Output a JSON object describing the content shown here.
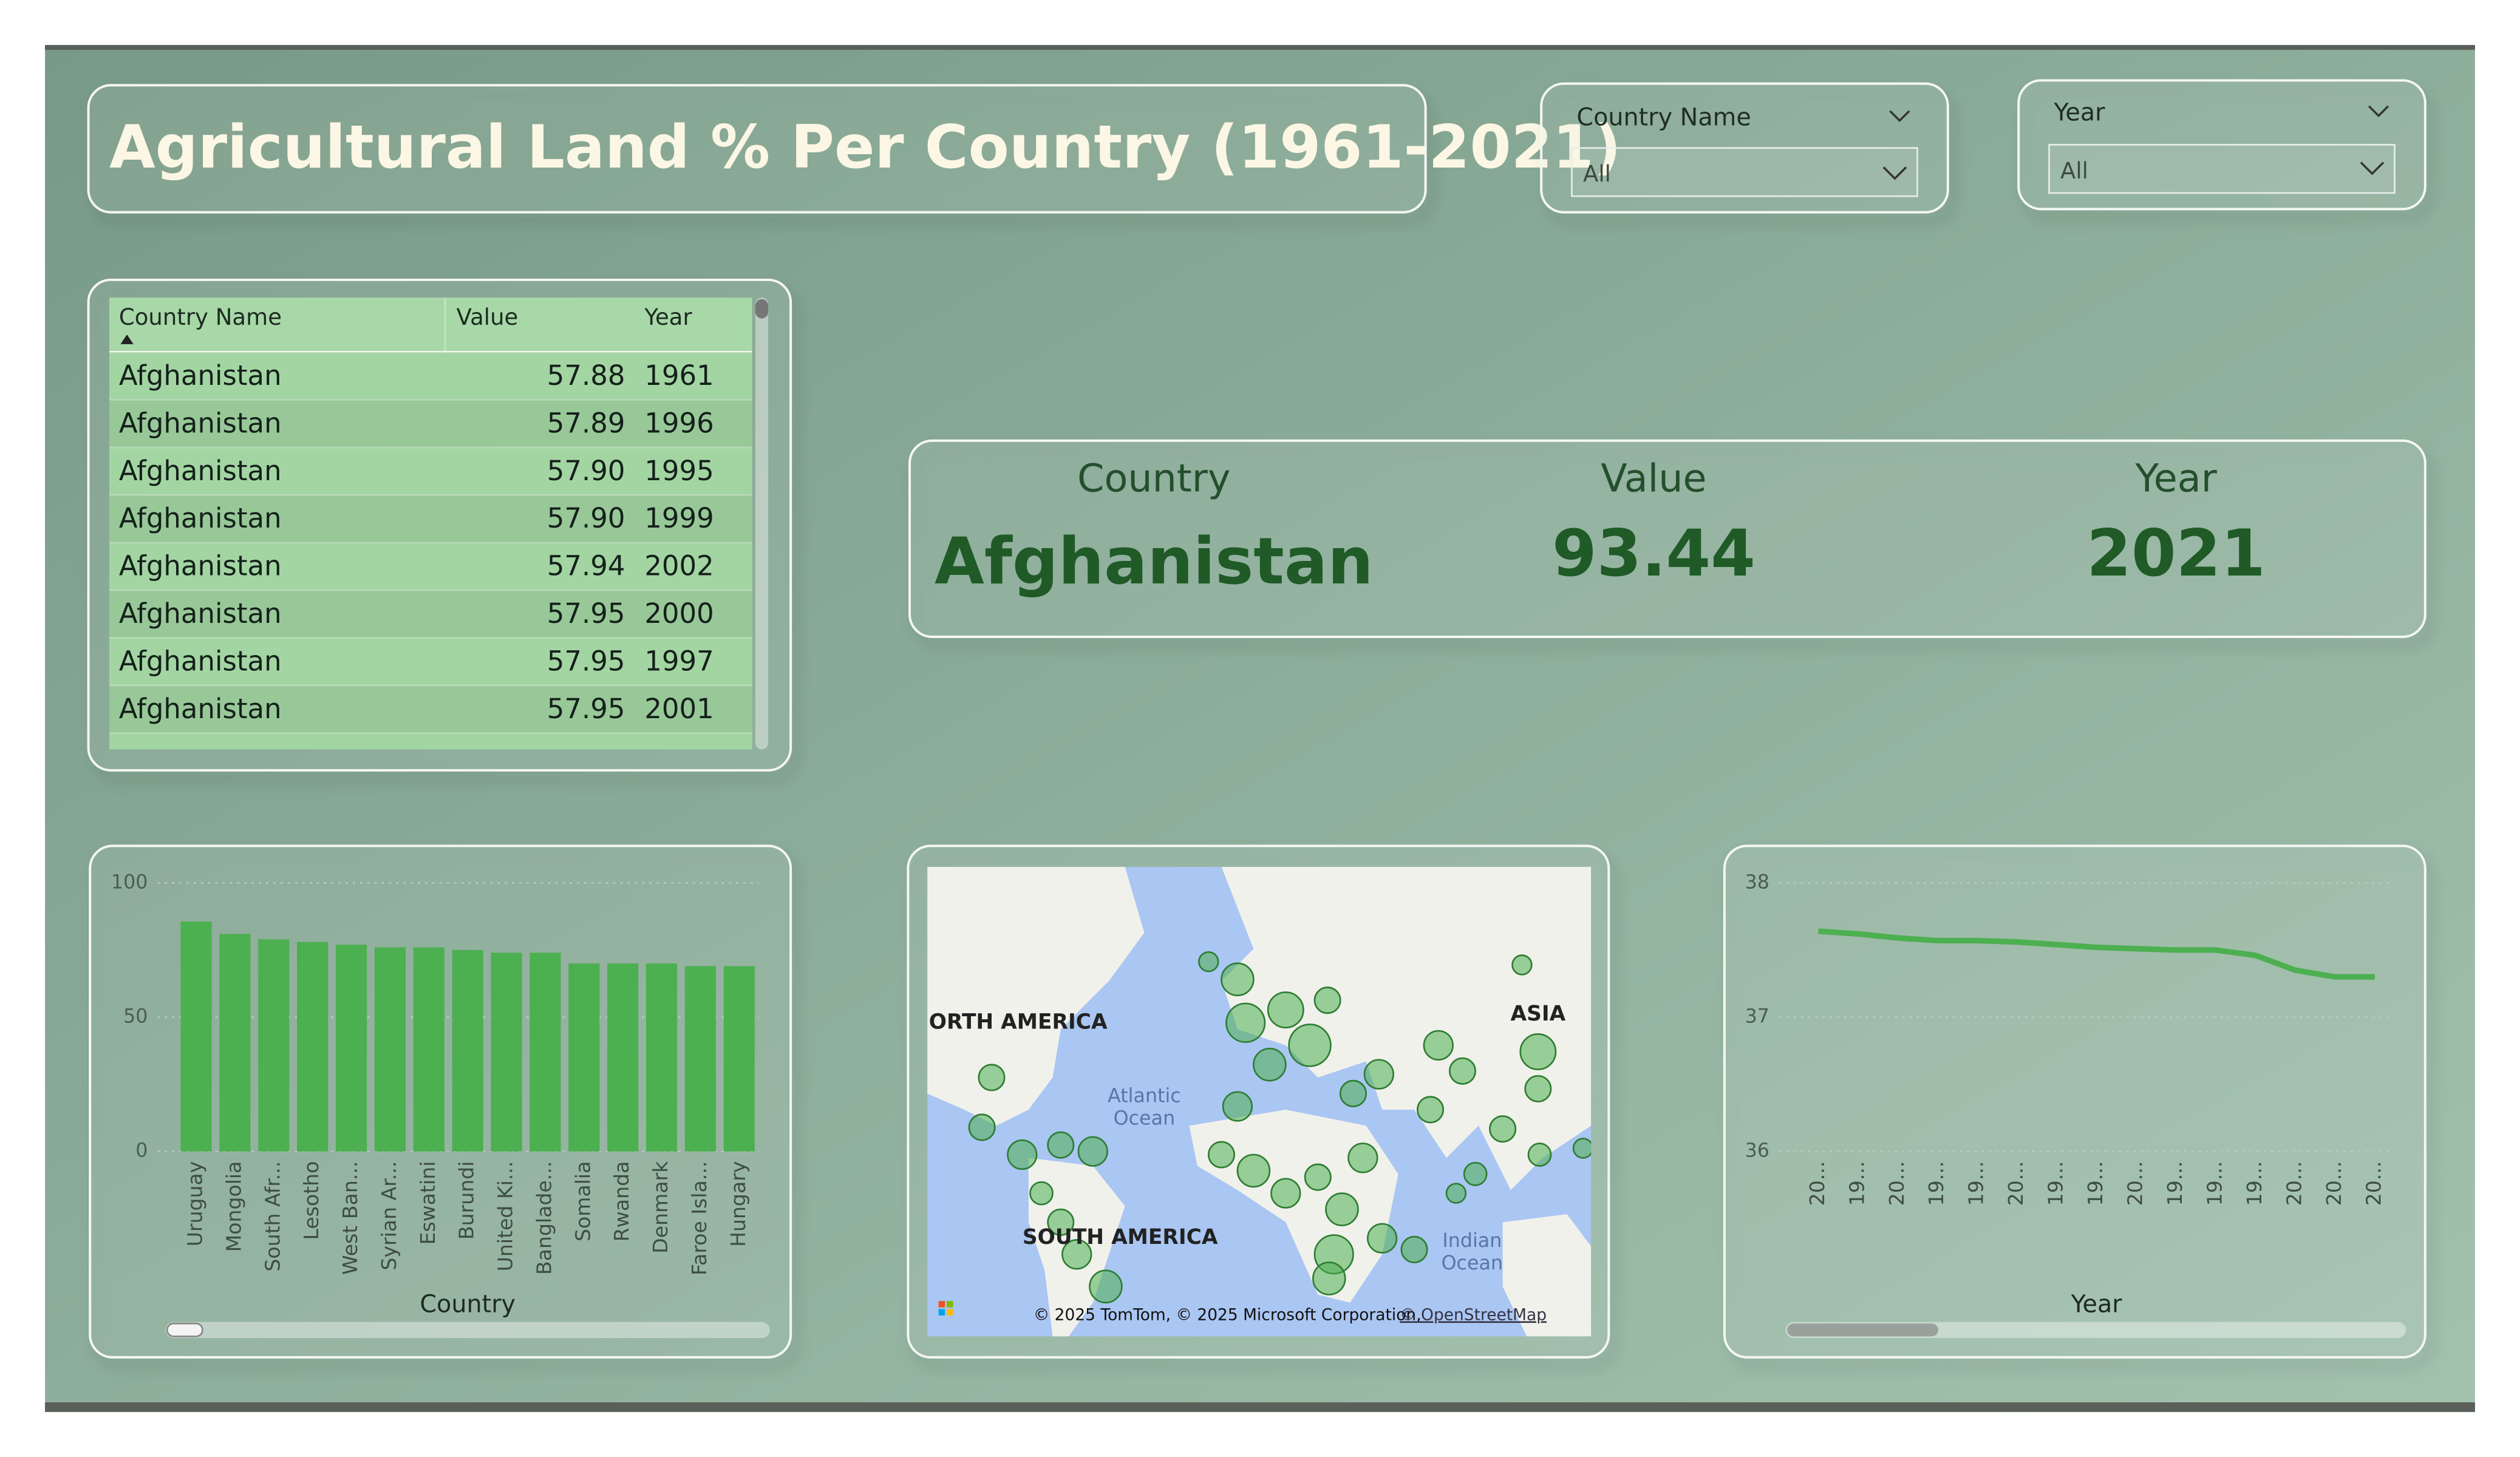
{
  "header": {
    "title": "Agricultural Land % Per Country (1961-2021)"
  },
  "slicers": [
    {
      "label": "Country Name",
      "value": "All"
    },
    {
      "label": "Year",
      "value": "All"
    }
  ],
  "table": {
    "columns": [
      "Country Name",
      "Value",
      "Year"
    ],
    "rows": [
      [
        "Afghanistan",
        "57.88",
        "1961"
      ],
      [
        "Afghanistan",
        "57.89",
        "1996"
      ],
      [
        "Afghanistan",
        "57.90",
        "1995"
      ],
      [
        "Afghanistan",
        "57.90",
        "1999"
      ],
      [
        "Afghanistan",
        "57.94",
        "2002"
      ],
      [
        "Afghanistan",
        "57.95",
        "2000"
      ],
      [
        "Afghanistan",
        "57.95",
        "1997"
      ],
      [
        "Afghanistan",
        "57.95",
        "2001"
      ]
    ]
  },
  "card": {
    "fields": [
      {
        "label": "Country",
        "value": "Afghanistan"
      },
      {
        "label": "Value",
        "value": "93.44"
      },
      {
        "label": "Year",
        "value": "2021"
      }
    ]
  },
  "bar_chart": {
    "type": "bar",
    "x_label": "Country",
    "categories": [
      "Uruguay",
      "Mongolia",
      "South Afr...",
      "Lesotho",
      "West Ban...",
      "Syrian Ar...",
      "Eswatini",
      "Burundi",
      "United Ki...",
      "Banglade...",
      "Somalia",
      "Rwanda",
      "Denmark",
      "Faroe Isla...",
      "Hungary"
    ],
    "values": [
      85.6,
      81,
      79,
      78,
      77,
      76,
      76,
      75,
      74,
      74,
      70,
      70,
      70,
      69,
      69
    ],
    "color": "#4caf50",
    "ylim": [
      0,
      100
    ],
    "yticks": [
      0,
      50,
      100
    ],
    "grid": true
  },
  "map": {
    "labels": [
      "ORTH AMERICA",
      "Atlantic",
      "Ocean",
      "ASIA",
      "SOUTH AMERICA",
      "Indian",
      "Ocean"
    ],
    "attribution": "© 2025 TomTom, © 2025 Microsoft Corporation,",
    "attribution_link": "© OpenStreetMap"
  },
  "line_chart": {
    "type": "line",
    "x_label": "Year",
    "categories": [
      "20...",
      "19...",
      "20...",
      "19...",
      "19...",
      "20...",
      "19...",
      "19...",
      "20...",
      "19...",
      "19...",
      "19...",
      "20...",
      "20...",
      "20..."
    ],
    "values": [
      37.64,
      37.62,
      37.59,
      37.57,
      37.57,
      37.56,
      37.54,
      37.52,
      37.51,
      37.5,
      37.5,
      37.46,
      37.35,
      37.3,
      37.3
    ],
    "color": "#4caf50",
    "ylim": [
      36,
      38
    ],
    "yticks": [
      36,
      37,
      38
    ],
    "grid": true
  }
}
